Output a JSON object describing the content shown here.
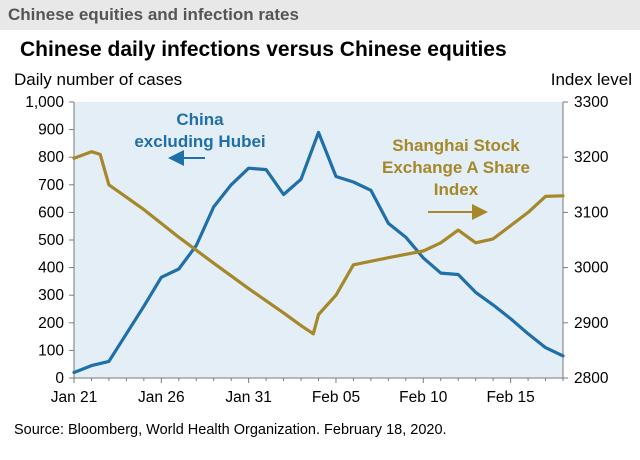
{
  "header": {
    "title": "Chinese equities and infection rates"
  },
  "chart_data": {
    "type": "line",
    "title": "Chinese daily infections versus Chinese equities",
    "left_axis": {
      "label": "Daily number of cases",
      "range": [
        0,
        1000
      ],
      "ticks": [
        "0",
        "100",
        "200",
        "300",
        "400",
        "500",
        "600",
        "700",
        "800",
        "900",
        "1,000"
      ]
    },
    "right_axis": {
      "label": "Index level",
      "range": [
        2800,
        3300
      ],
      "ticks": [
        "2800",
        "2900",
        "3000",
        "3100",
        "3200",
        "3300"
      ]
    },
    "x_axis": {
      "ticks": [
        "Jan 21",
        "Jan 26",
        "Jan 31",
        "Feb 05",
        "Feb 10",
        "Feb 15"
      ],
      "range_days": [
        0,
        28
      ]
    },
    "grid": false,
    "plot_background": "#e4eef6",
    "series": [
      {
        "name": "China excluding Hubei",
        "label_lines": [
          "China",
          "excluding Hubei"
        ],
        "axis": "left",
        "color": "#1f6fa8",
        "x": [
          0,
          1,
          2,
          3,
          4,
          5,
          6,
          7,
          8,
          9,
          10,
          11,
          12,
          13,
          14,
          15,
          16,
          17,
          18,
          19,
          20,
          21,
          22,
          23,
          24,
          25,
          26,
          27,
          28
        ],
        "y": [
          20,
          45,
          60,
          160,
          260,
          365,
          395,
          480,
          620,
          700,
          760,
          755,
          665,
          720,
          890,
          730,
          710,
          680,
          560,
          510,
          435,
          380,
          375,
          310,
          265,
          215,
          160,
          110,
          80
        ]
      },
      {
        "name": "Shanghai Stock Exchange A Share Index",
        "label_lines": [
          "Shanghai Stock",
          "Exchange A Share",
          "Index"
        ],
        "axis": "right",
        "color": "#a5882a",
        "x": [
          0,
          1,
          1.5,
          2,
          4,
          6,
          8,
          10,
          12,
          13,
          13.7,
          14,
          15,
          16,
          18,
          20,
          21,
          22,
          23,
          24,
          26,
          27,
          28
        ],
        "y": [
          3198,
          3210,
          3205,
          3150,
          3105,
          3055,
          3008,
          2962,
          2918,
          2895,
          2880,
          2915,
          2950,
          3005,
          3018,
          3030,
          3045,
          3068,
          3045,
          3052,
          3100,
          3129,
          3130
        ]
      }
    ],
    "annotations": [
      {
        "points_to": "left axis",
        "series": "China excluding Hubei"
      },
      {
        "points_to": "right axis",
        "series": "Shanghai Stock Exchange A Share Index"
      }
    ],
    "source": "Source: Bloomberg, World Health Organization.  February 18, 2020."
  }
}
